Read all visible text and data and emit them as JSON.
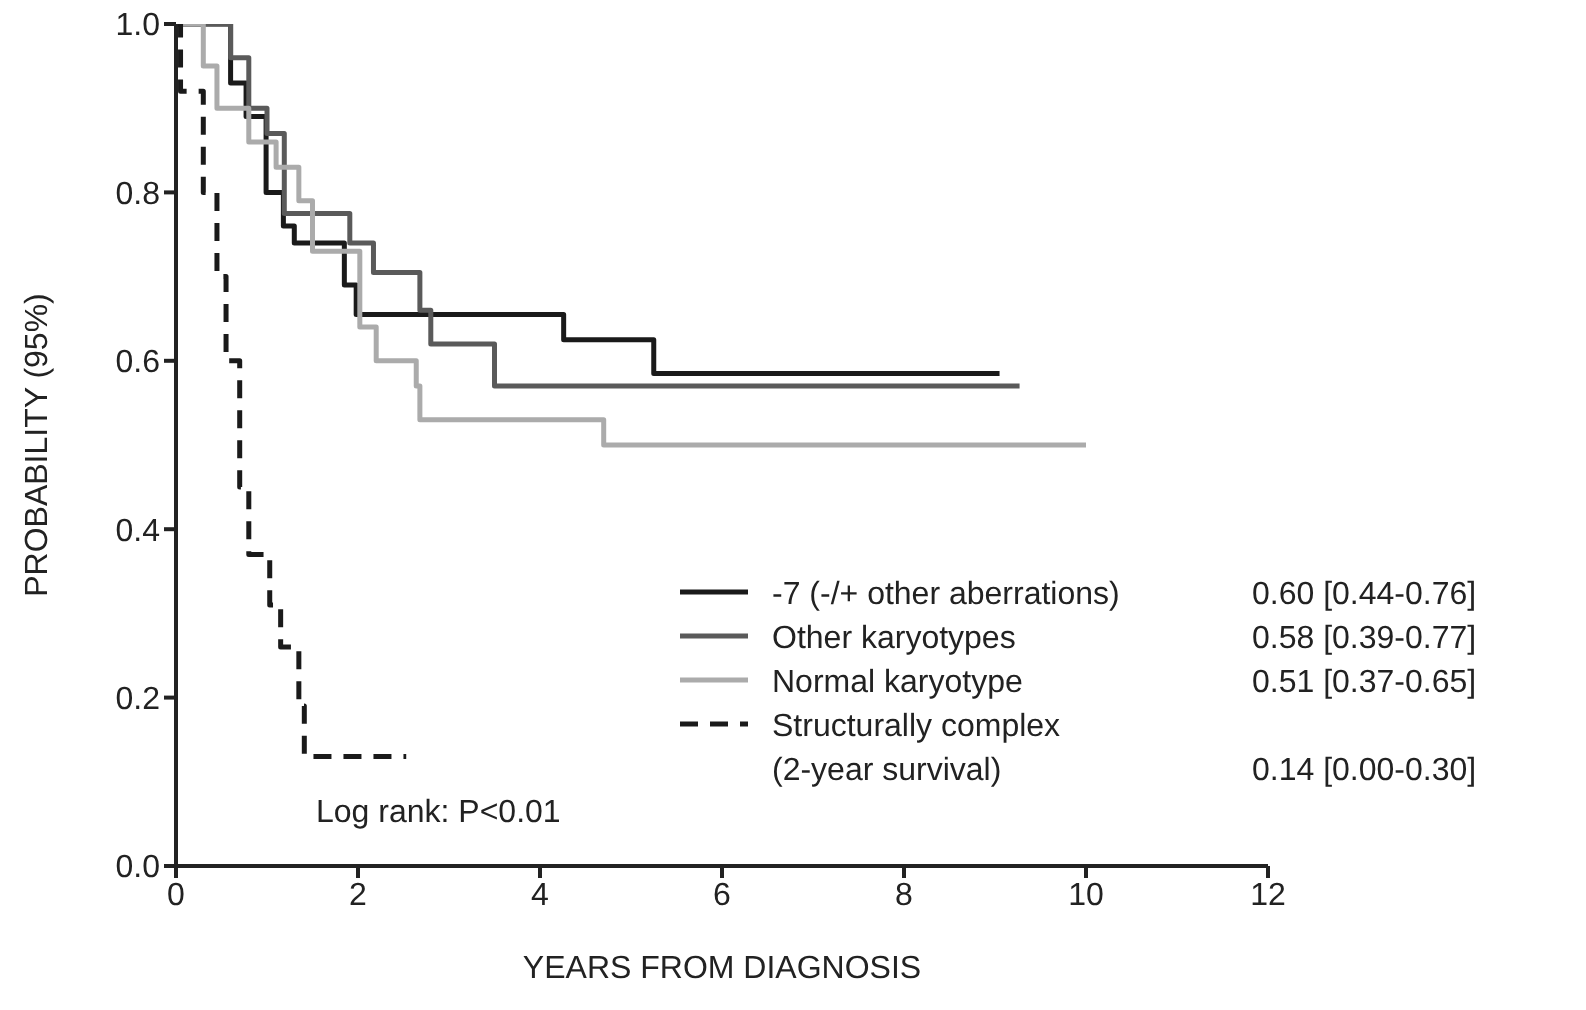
{
  "chart_data": {
    "type": "step",
    "xlabel": "YEARS FROM DIAGNOSIS",
    "ylabel": "PROBABILITY (95%)",
    "xlim": [
      0,
      12
    ],
    "xticks": [
      0,
      2,
      4,
      6,
      8,
      10,
      12
    ],
    "ylim": [
      0,
      1
    ],
    "yticks": [
      {
        "value": 0,
        "label": "0.0"
      },
      0.2,
      0.4,
      0.6,
      0.8,
      {
        "value": 1,
        "label": "1.0"
      }
    ],
    "legend": "bottom right",
    "marker": "none",
    "series": [
      {
        "name": "-7 (-/+ other aberrations)",
        "color": "#1a1a1a",
        "line_style": "solid",
        "x": [
          0,
          0.6,
          0.77,
          0.99,
          1.18,
          1.3,
          1.85,
          1.98,
          4.26,
          5.25,
          9.05
        ],
        "values": [
          1,
          0.93,
          0.89,
          0.8,
          0.76,
          0.74,
          0.69,
          0.655,
          0.625,
          0.585,
          0.585
        ]
      },
      {
        "name": "Other karyotypes",
        "color": "#5a5a5a",
        "line_style": "solid",
        "x": [
          0,
          0.6,
          0.8,
          1.0,
          1.19,
          1.91,
          2.17,
          2.68,
          2.8,
          3.5,
          9.27
        ],
        "values": [
          1,
          0.96,
          0.9,
          0.87,
          0.775,
          0.74,
          0.705,
          0.66,
          0.62,
          0.57,
          0.57
        ]
      },
      {
        "name": "Normal karyotype",
        "color": "#ababab",
        "line_style": "solid",
        "x": [
          0,
          0.3,
          0.45,
          0.8,
          1.1,
          1.35,
          1.5,
          2.02,
          2.2,
          2.64,
          2.68,
          4.7,
          10.0
        ],
        "values": [
          1,
          0.95,
          0.9,
          0.86,
          0.83,
          0.79,
          0.73,
          0.64,
          0.6,
          0.57,
          0.53,
          0.5,
          0.5
        ]
      },
      {
        "name": "Structurally complex",
        "color": "#1a1a1a",
        "line_style": "dashed",
        "x": [
          0,
          0.05,
          0.3,
          0.45,
          0.55,
          0.7,
          0.8,
          1.03,
          1.15,
          1.35,
          1.41,
          2.53
        ],
        "values": [
          1,
          0.92,
          0.8,
          0.7,
          0.6,
          0.45,
          0.37,
          0.31,
          0.26,
          0.19,
          0.13,
          0.13
        ]
      }
    ],
    "annotations": [
      "Log rank: P<0.01",
      "(2-year survival)",
      "0.60 [0.44-0.76]",
      "0.58 [0.39-0.77]",
      "0.51 [0.37-0.65]",
      "0.14 [0.00-0.30]"
    ]
  }
}
